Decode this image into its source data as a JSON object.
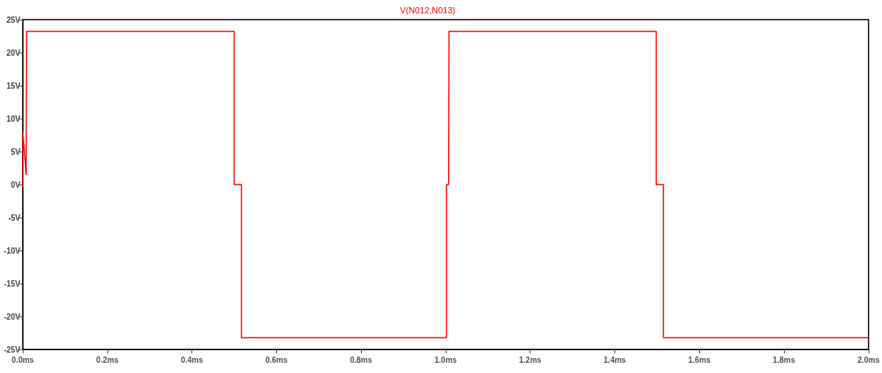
{
  "chart_data": {
    "type": "line",
    "title": "V(N012,N013)",
    "series": [
      {
        "name": null,
        "color": "#ff0000",
        "x": [
          0,
          0,
          0.004,
          0.008,
          0.009,
          0.5,
          0.5,
          0.517,
          0.517,
          1.002,
          1.002,
          1.007,
          1.008,
          1.498,
          1.498,
          1.515,
          1.515,
          2.0
        ],
        "values": [
          -0.5,
          8,
          5,
          1.5,
          23.2,
          23.2,
          0,
          0,
          -23.2,
          -23.2,
          0,
          0,
          23.2,
          23.2,
          0,
          0,
          -23.2,
          -23.2
        ]
      }
    ],
    "xlim": [
      0,
      2.0
    ],
    "xticks": [
      {
        "value": 0,
        "label": "0.0ms"
      },
      {
        "value": 0.2,
        "label": "0.2ms"
      },
      {
        "value": 0.4,
        "label": "0.4ms"
      },
      {
        "value": 0.6,
        "label": "0.6ms"
      },
      {
        "value": 0.8,
        "label": "0.8ms"
      },
      {
        "value": 1.0,
        "label": "1.0ms"
      },
      {
        "value": 1.2,
        "label": "1.2ms"
      },
      {
        "value": 1.4,
        "label": "1.4ms"
      },
      {
        "value": 1.6,
        "label": "1.6ms"
      },
      {
        "value": 1.8,
        "label": "1.8ms"
      },
      {
        "value": 2.0,
        "label": "2.0ms"
      }
    ],
    "ylim": [
      -25,
      25
    ],
    "yticks": [
      {
        "value": -25,
        "label": "-25V"
      },
      {
        "value": -20,
        "label": "-20V"
      },
      {
        "value": -15,
        "label": "-15V"
      },
      {
        "value": -10,
        "label": "-10V"
      },
      {
        "value": -5,
        "label": "-5V"
      },
      {
        "value": 0,
        "label": "0V"
      },
      {
        "value": 5,
        "label": "5V"
      },
      {
        "value": 10,
        "label": "10V"
      },
      {
        "value": 15,
        "label": "15V"
      },
      {
        "value": 20,
        "label": "20V"
      },
      {
        "value": 25,
        "label": "25V"
      }
    ],
    "grid": false,
    "marker": "none",
    "line_style": "solid"
  }
}
